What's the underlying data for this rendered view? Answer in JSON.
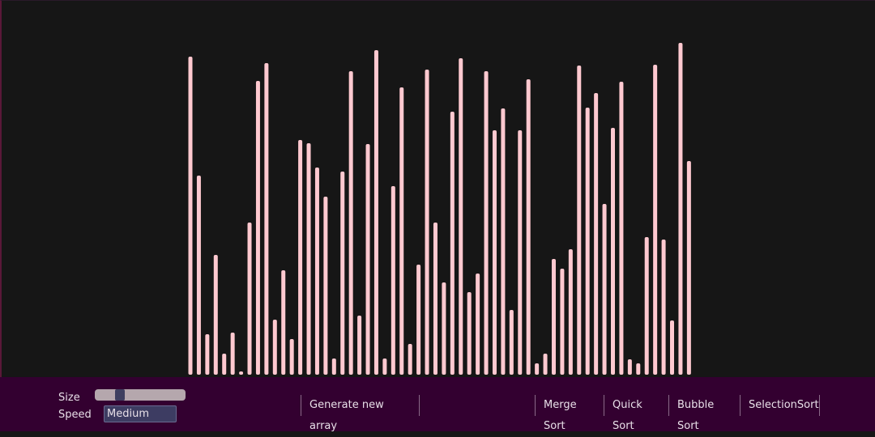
{
  "array": {
    "values": [
      393,
      246,
      50,
      148,
      26,
      52,
      4,
      188,
      363,
      385,
      68,
      129,
      44,
      290,
      286,
      256,
      220,
      20,
      251,
      375,
      73,
      285,
      401,
      20,
      233,
      355,
      38,
      136,
      377,
      188,
      114,
      325,
      391,
      102,
      125,
      375,
      302,
      329,
      80,
      302,
      365,
      14,
      26,
      143,
      131,
      155,
      382,
      330,
      348,
      211,
      305,
      362,
      19,
      14,
      170,
      383,
      167,
      67,
      410,
      264
    ]
  },
  "controls": {
    "size_label": "Size",
    "speed_label": "Speed",
    "speed_value": "Medium"
  },
  "buttons": {
    "generate": "Generate new array",
    "sorts": [
      "Merge Sort",
      "Quick Sort",
      "Bubble Sort",
      "SelectionSort"
    ]
  }
}
